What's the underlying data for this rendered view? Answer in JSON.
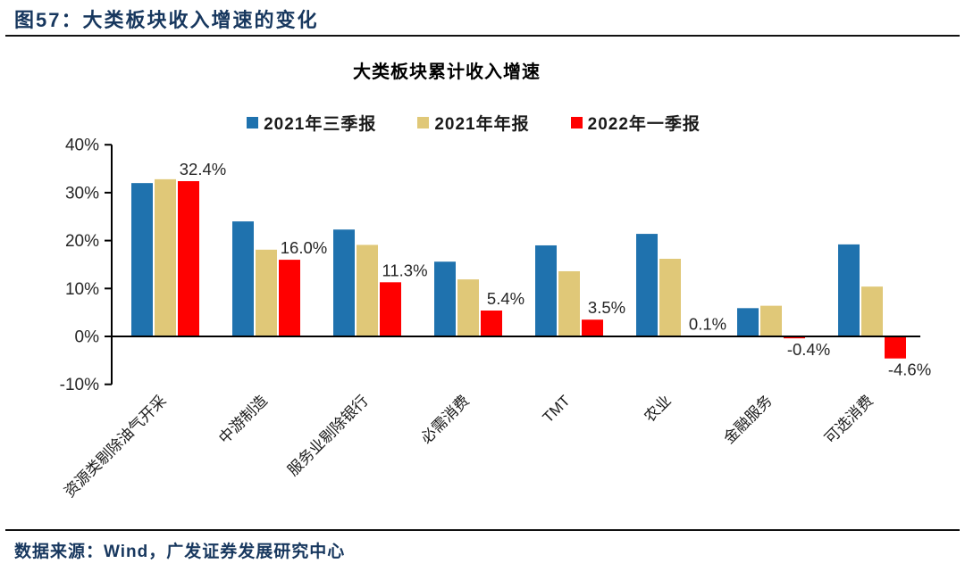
{
  "header": {
    "title": "图57：大类板块收入增速的变化"
  },
  "footer": {
    "source": "数据来源：Wind，广发证券发展研究中心"
  },
  "colors": {
    "series_blue": "#1F72AE",
    "series_tan": "#E0C878",
    "series_red": "#FF0000",
    "navy_text": "#17375E",
    "axis": "#000000",
    "label_text": "#262626"
  },
  "chart_data": {
    "type": "bar",
    "title": "大类板块累计收入增速",
    "categories": [
      "资源类剔除油气开采",
      "中游制造",
      "服务业剔除银行",
      "必需消费",
      "TMT",
      "农业",
      "金融服务",
      "可选消费"
    ],
    "series": [
      {
        "name": "2021年三季报",
        "color_key": "series_blue",
        "values": [
          32.0,
          24.0,
          22.3,
          15.6,
          19.0,
          21.4,
          5.9,
          19.2
        ]
      },
      {
        "name": "2021年年报",
        "color_key": "series_tan",
        "values": [
          32.8,
          18.1,
          19.1,
          11.9,
          13.6,
          16.2,
          6.4,
          10.4
        ]
      },
      {
        "name": "2022年一季报",
        "color_key": "series_red",
        "values": [
          32.4,
          16.0,
          11.3,
          5.4,
          3.5,
          0.1,
          -0.4,
          -4.6
        ],
        "labeled": true
      }
    ],
    "data_labels": [
      "32.4%",
      "16.0%",
      "11.3%",
      "5.4%",
      "3.5%",
      "0.1%",
      "-0.4%",
      "-4.6%"
    ],
    "y_tick_labels": [
      "40%",
      "30%",
      "20%",
      "10%",
      "0%",
      "-10%"
    ],
    "y_tick_values": [
      40,
      30,
      20,
      10,
      0,
      -10
    ],
    "ylim": [
      -10,
      40
    ],
    "grid": "off",
    "legend_position": "top",
    "xlabel": "",
    "ylabel": ""
  }
}
